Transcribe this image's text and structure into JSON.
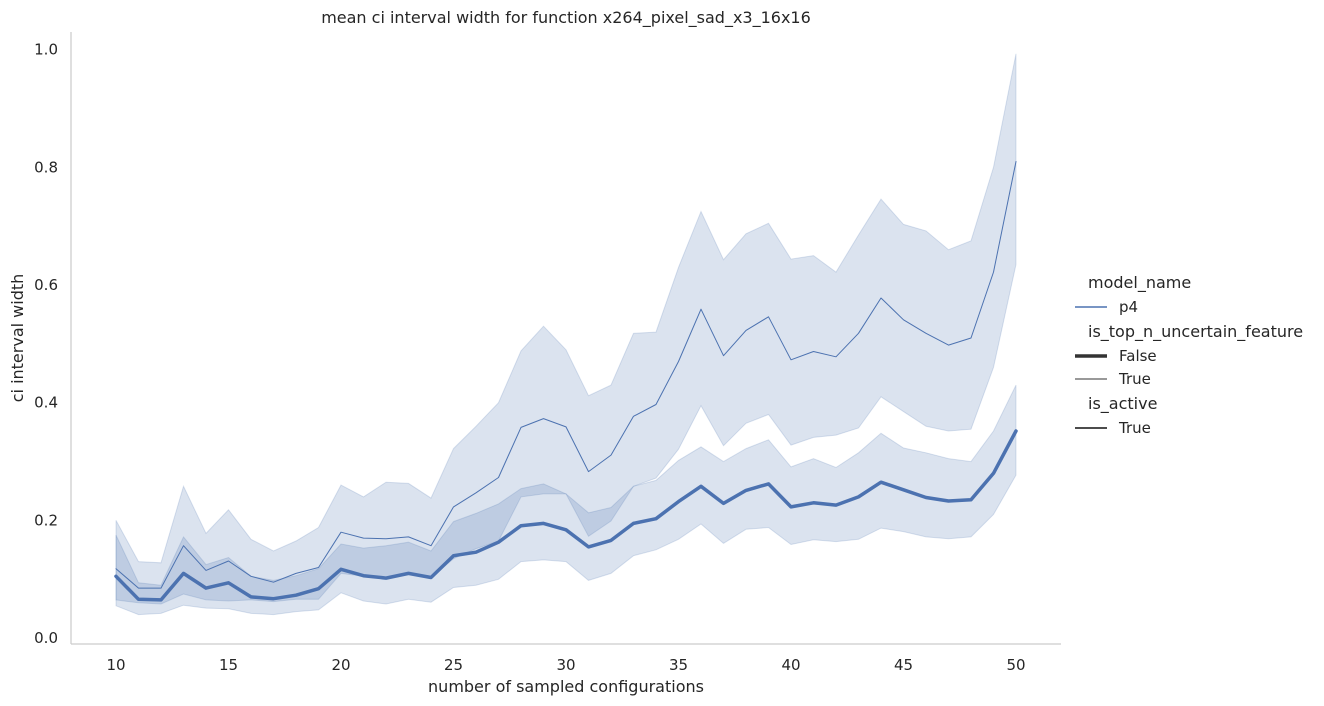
{
  "chart_data": {
    "type": "line",
    "title": "mean ci interval width for function x264_pixel_sad_x3_16x16",
    "xlabel": "number of sampled configurations",
    "ylabel": "ci interval width",
    "xlim": [
      8,
      52
    ],
    "ylim": [
      -0.01,
      1.03
    ],
    "xticks": [
      10,
      15,
      20,
      25,
      30,
      35,
      40,
      45,
      50
    ],
    "yticks": [
      0.0,
      0.2,
      0.4,
      0.6,
      0.8,
      1.0
    ],
    "grid": false,
    "color": "#4c72b0",
    "x": [
      10,
      11,
      12,
      13,
      14,
      15,
      16,
      17,
      18,
      19,
      20,
      21,
      22,
      23,
      24,
      25,
      26,
      27,
      28,
      29,
      30,
      31,
      32,
      33,
      34,
      35,
      36,
      37,
      38,
      39,
      40,
      41,
      42,
      43,
      44,
      45,
      46,
      47,
      48,
      49,
      50
    ],
    "series": [
      {
        "name": "False",
        "linewidth": 3.5,
        "values": [
          0.105,
          0.066,
          0.065,
          0.11,
          0.085,
          0.094,
          0.07,
          0.067,
          0.073,
          0.084,
          0.117,
          0.106,
          0.102,
          0.11,
          0.103,
          0.14,
          0.146,
          0.163,
          0.191,
          0.195,
          0.184,
          0.155,
          0.166,
          0.195,
          0.203,
          0.232,
          0.258,
          0.229,
          0.251,
          0.262,
          0.223,
          0.23,
          0.226,
          0.24,
          0.265,
          0.252,
          0.239,
          0.233,
          0.235,
          0.28,
          0.352
        ],
        "lower": [
          0.055,
          0.04,
          0.042,
          0.056,
          0.051,
          0.05,
          0.042,
          0.04,
          0.045,
          0.048,
          0.077,
          0.063,
          0.058,
          0.066,
          0.061,
          0.086,
          0.09,
          0.1,
          0.13,
          0.133,
          0.13,
          0.098,
          0.11,
          0.14,
          0.15,
          0.168,
          0.194,
          0.161,
          0.185,
          0.188,
          0.159,
          0.167,
          0.164,
          0.168,
          0.187,
          0.181,
          0.172,
          0.169,
          0.172,
          0.21,
          0.277
        ],
        "upper": [
          0.175,
          0.094,
          0.09,
          0.172,
          0.125,
          0.137,
          0.105,
          0.098,
          0.106,
          0.118,
          0.16,
          0.153,
          0.157,
          0.163,
          0.148,
          0.198,
          0.212,
          0.228,
          0.254,
          0.262,
          0.245,
          0.213,
          0.222,
          0.258,
          0.268,
          0.302,
          0.325,
          0.3,
          0.322,
          0.337,
          0.291,
          0.305,
          0.29,
          0.315,
          0.348,
          0.323,
          0.315,
          0.305,
          0.3,
          0.352,
          0.43
        ]
      },
      {
        "name": "True",
        "linewidth": 1,
        "values": [
          0.118,
          0.085,
          0.085,
          0.157,
          0.115,
          0.131,
          0.105,
          0.095,
          0.11,
          0.12,
          0.18,
          0.17,
          0.169,
          0.172,
          0.157,
          0.223,
          0.247,
          0.273,
          0.358,
          0.373,
          0.359,
          0.283,
          0.311,
          0.377,
          0.397,
          0.47,
          0.559,
          0.48,
          0.523,
          0.546,
          0.473,
          0.487,
          0.478,
          0.518,
          0.578,
          0.541,
          0.518,
          0.498,
          0.51,
          0.622,
          0.81
        ],
        "lower": [
          0.065,
          0.06,
          0.058,
          0.075,
          0.065,
          0.063,
          0.065,
          0.062,
          0.066,
          0.066,
          0.11,
          0.105,
          0.101,
          0.11,
          0.103,
          0.135,
          0.152,
          0.165,
          0.24,
          0.245,
          0.245,
          0.173,
          0.199,
          0.258,
          0.272,
          0.321,
          0.395,
          0.327,
          0.365,
          0.38,
          0.328,
          0.341,
          0.345,
          0.357,
          0.41,
          0.385,
          0.36,
          0.352,
          0.355,
          0.46,
          0.635
        ],
        "upper": [
          0.2,
          0.13,
          0.128,
          0.258,
          0.178,
          0.218,
          0.168,
          0.148,
          0.165,
          0.188,
          0.26,
          0.24,
          0.265,
          0.263,
          0.238,
          0.322,
          0.36,
          0.4,
          0.488,
          0.53,
          0.49,
          0.412,
          0.43,
          0.518,
          0.52,
          0.63,
          0.725,
          0.643,
          0.687,
          0.705,
          0.644,
          0.65,
          0.622,
          0.685,
          0.746,
          0.703,
          0.692,
          0.66,
          0.675,
          0.8,
          0.993
        ]
      }
    ],
    "legend": {
      "placement": "right",
      "sections": [
        {
          "title": "model_name",
          "entries": [
            {
              "label": "p4",
              "style": "thin-colored"
            }
          ]
        },
        {
          "title": "is_top_n_uncertain_feature",
          "entries": [
            {
              "label": "False",
              "style": "thick-dark"
            },
            {
              "label": "True",
              "style": "thin-dark"
            }
          ]
        },
        {
          "title": "is_active",
          "entries": [
            {
              "label": "True",
              "style": "medium-dark"
            }
          ]
        }
      ]
    }
  }
}
